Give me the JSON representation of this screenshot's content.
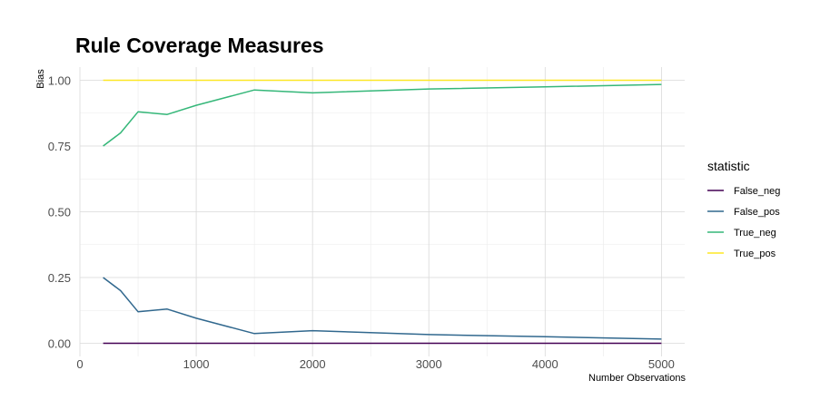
{
  "chart_data": {
    "type": "line",
    "title": "Rule Coverage Measures",
    "xlabel": "Number Observations",
    "ylabel": "Bias",
    "xlim": [
      0,
      5200
    ],
    "ylim": [
      -0.05,
      1.05
    ],
    "x_ticks": [
      0,
      1000,
      2000,
      3000,
      4000,
      5000
    ],
    "x_tick_labels": [
      "0",
      "1000",
      "2000",
      "3000",
      "4000",
      "5000"
    ],
    "y_ticks": [
      0,
      0.25,
      0.5,
      0.75,
      1.0
    ],
    "y_tick_labels": [
      "0.00",
      "0.25",
      "0.50",
      "0.75",
      "1.00"
    ],
    "grid": true,
    "legend": {
      "title": "statistic",
      "position": "right"
    },
    "x": [
      200,
      350,
      500,
      750,
      1000,
      1500,
      2000,
      3000,
      4000,
      5000
    ],
    "series": [
      {
        "name": "False_neg",
        "color": "#440154",
        "values": [
          0,
          0,
          0,
          0,
          0,
          0,
          0,
          0,
          0,
          0
        ]
      },
      {
        "name": "False_pos",
        "color": "#31688E",
        "values": [
          0.25,
          0.2,
          0.12,
          0.13,
          0.095,
          0.037,
          0.048,
          0.033,
          0.025,
          0.016
        ]
      },
      {
        "name": "True_neg",
        "color": "#35B779",
        "values": [
          0.75,
          0.8,
          0.88,
          0.87,
          0.905,
          0.963,
          0.952,
          0.967,
          0.975,
          0.984
        ]
      },
      {
        "name": "True_pos",
        "color": "#FDE725",
        "values": [
          1,
          1,
          1,
          1,
          1,
          1,
          1,
          1,
          1,
          1
        ]
      }
    ]
  }
}
